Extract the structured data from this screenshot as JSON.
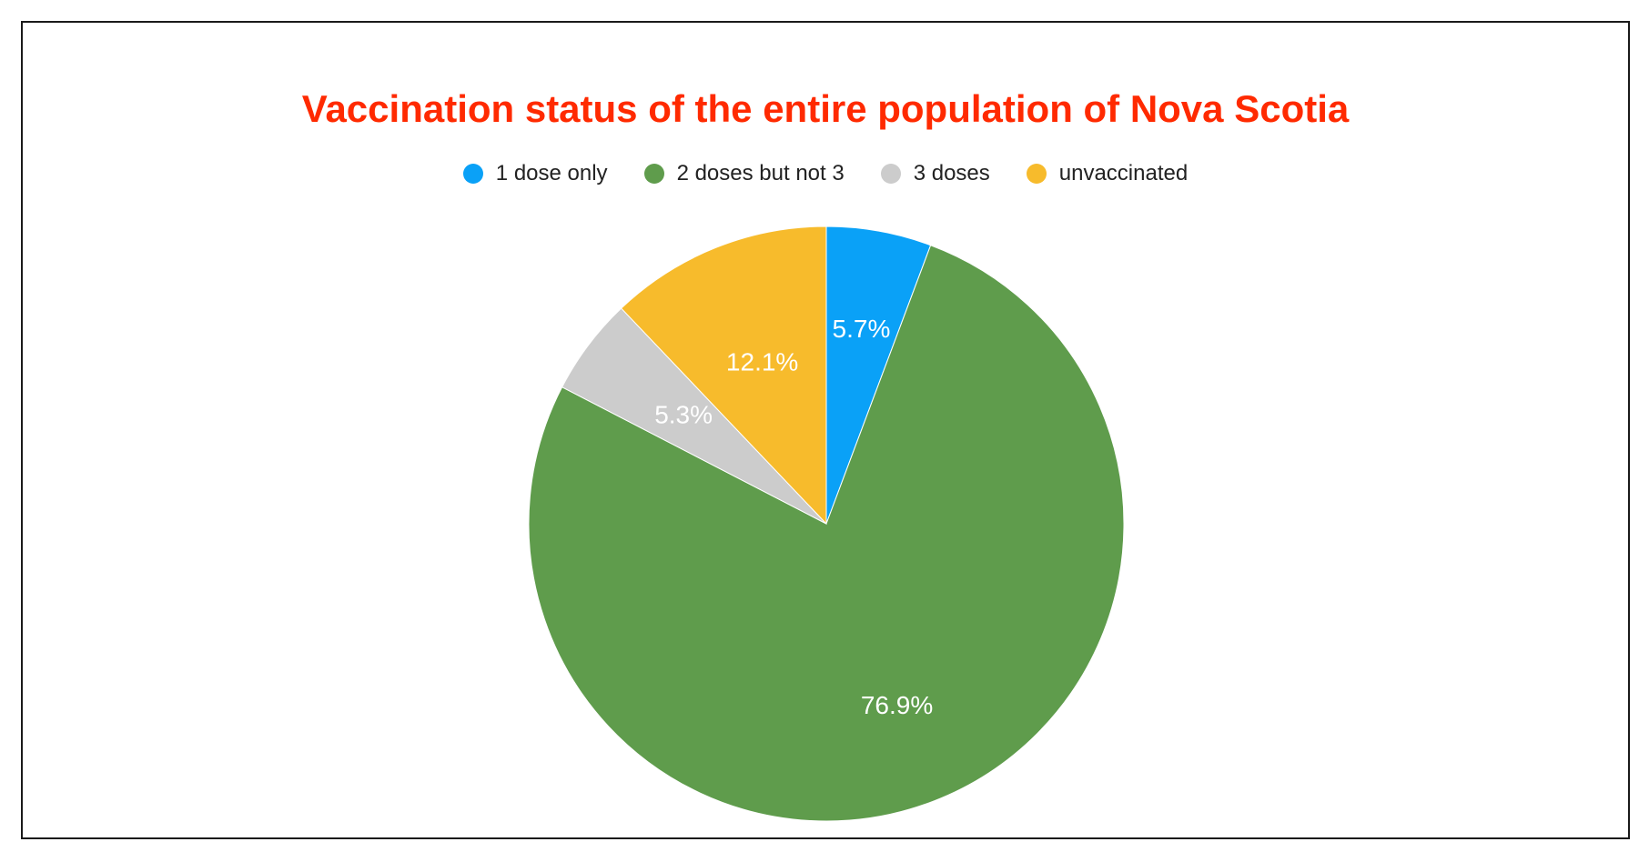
{
  "chart_data": {
    "type": "pie",
    "title": "Vaccination status of the entire population of Nova Scotia",
    "legend_position": "top",
    "slices": [
      {
        "name": "1 dose only",
        "value": 5.7,
        "label": "5.7%",
        "color": "#0aa1f7"
      },
      {
        "name": "2 doses but not 3",
        "value": 76.9,
        "label": "76.9%",
        "color": "#5f9c4c"
      },
      {
        "name": "3 doses",
        "value": 5.3,
        "label": "5.3%",
        "color": "#cccccc"
      },
      {
        "name": "unvaccinated",
        "value": 12.1,
        "label": "12.1%",
        "color": "#f7bb2c"
      }
    ]
  },
  "style": {
    "title_color": "#ff2a00",
    "border_color": "#1a1a1a"
  }
}
